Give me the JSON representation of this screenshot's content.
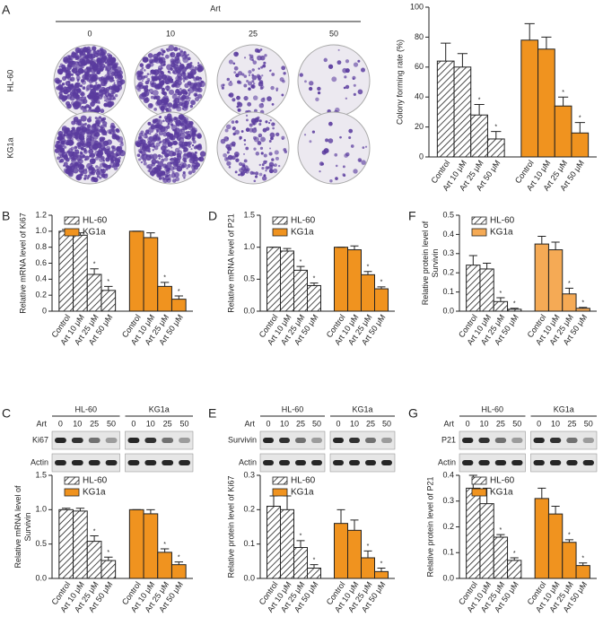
{
  "panel_letters": [
    "A",
    "B",
    "C",
    "D",
    "E",
    "F",
    "G"
  ],
  "plates": {
    "title": "Art",
    "doses": [
      "0",
      "10",
      "25",
      "50"
    ],
    "rows": [
      "HL-60",
      "KG1a"
    ]
  },
  "blots": [
    {
      "groups": [
        "HL-60",
        "KG1a"
      ],
      "label": "Art",
      "doses": [
        "0",
        "10",
        "25",
        "50"
      ],
      "proteins": [
        "Ki67",
        "Actin"
      ]
    },
    {
      "groups": [
        "HL-60",
        "KG1a"
      ],
      "label": "Art",
      "doses": [
        "0",
        "10",
        "25",
        "50"
      ],
      "proteins": [
        "Survivin",
        "Actin"
      ]
    },
    {
      "groups": [
        "HL-60",
        "KG1a"
      ],
      "label": "Art",
      "doses": [
        "0",
        "10",
        "25",
        "50"
      ],
      "proteins": [
        "P21",
        "Actin"
      ]
    }
  ],
  "chart_data": [
    {
      "type": "bar",
      "ylabel": [
        "Colony forming rate (%)"
      ],
      "categories": [
        "Control",
        "Art 10 μM",
        "Art 25 μM",
        "Art 50 μM"
      ],
      "ylim": [
        0,
        100
      ],
      "yticks": [
        0,
        20,
        40,
        60,
        80,
        100
      ],
      "series": [
        {
          "color": "#ffffff",
          "pattern": "hatch",
          "values": [
            64,
            60,
            28,
            12
          ],
          "errors": [
            12,
            9,
            7,
            5
          ],
          "marks": [
            null,
            null,
            "*",
            "*"
          ]
        },
        {
          "color": "#f0931f",
          "values": [
            78,
            72,
            34,
            16
          ],
          "errors": [
            11,
            8,
            6,
            7
          ],
          "marks": [
            null,
            null,
            "*",
            "*"
          ]
        }
      ]
    },
    {
      "type": "bar",
      "ylabel": [
        "Relative mRNA level of Ki67"
      ],
      "categories": [
        "Control",
        "Art 10 μM",
        "Art 25 μM",
        "Art 50 μM"
      ],
      "ylim": [
        0,
        1.2
      ],
      "yticks": [
        0,
        0.2,
        0.4,
        0.6,
        0.8,
        {
          "value": 1,
          "label": "1.0"
        },
        1.2
      ],
      "legend": "upper left",
      "series": [
        {
          "name": "HL-60",
          "color": "#ffffff",
          "pattern": "hatch",
          "values": [
            1.0,
            0.95,
            0.46,
            0.26
          ],
          "errors": [
            0.02,
            0.03,
            0.07,
            0.05
          ],
          "marks": [
            null,
            null,
            "*",
            "*"
          ]
        },
        {
          "name": "KG1a",
          "color": "#f0931f",
          "values": [
            1.0,
            0.92,
            0.31,
            0.15
          ],
          "errors": [
            0.0,
            0.06,
            0.05,
            0.04
          ],
          "marks": [
            null,
            null,
            "*",
            "*"
          ]
        }
      ]
    },
    {
      "type": "bar",
      "ylabel": [
        "Relative mRNA level of",
        "Survivin"
      ],
      "categories": [
        "Control",
        "Art 10 μM",
        "Art 25 μM",
        "Art 50 μM"
      ],
      "ylim": [
        0,
        1.5
      ],
      "yticks": [
        {
          "value": 0,
          "label": "0.0"
        },
        0.5,
        {
          "value": 1,
          "label": "1.0"
        },
        1.5
      ],
      "legend": "upper left",
      "series": [
        {
          "name": "HL-60",
          "color": "#ffffff",
          "pattern": "hatch",
          "values": [
            1.0,
            0.98,
            0.54,
            0.26
          ],
          "errors": [
            0.02,
            0.04,
            0.08,
            0.05
          ],
          "marks": [
            null,
            null,
            "*",
            "*"
          ]
        },
        {
          "name": "KG1a",
          "color": "#f0931f",
          "values": [
            1.0,
            0.94,
            0.38,
            0.2
          ],
          "errors": [
            0.0,
            0.06,
            0.05,
            0.04
          ],
          "marks": [
            null,
            null,
            "*",
            "*"
          ]
        }
      ]
    },
    {
      "type": "bar",
      "ylabel": [
        "Relative mRNA level of P21"
      ],
      "categories": [
        "Control",
        "Art 10 μM",
        "Art 25 μM",
        "Art 50 μM"
      ],
      "ylim": [
        0,
        1.5
      ],
      "yticks": [
        {
          "value": 0,
          "label": "0.0"
        },
        0.5,
        {
          "value": 1,
          "label": "1.0"
        },
        1.5
      ],
      "legend": "upper left",
      "series": [
        {
          "name": "HL-60",
          "color": "#ffffff",
          "pattern": "hatch",
          "values": [
            1.0,
            0.94,
            0.64,
            0.4
          ],
          "errors": [
            0.0,
            0.04,
            0.06,
            0.04
          ],
          "marks": [
            null,
            null,
            "*",
            "*"
          ]
        },
        {
          "name": "KG1a",
          "color": "#f0931f",
          "values": [
            1.0,
            0.96,
            0.57,
            0.35
          ],
          "errors": [
            0.0,
            0.06,
            0.05,
            0.03
          ],
          "marks": [
            null,
            null,
            "*",
            "*"
          ]
        }
      ]
    },
    {
      "type": "bar",
      "ylabel": [
        "Relative protein level of Ki67"
      ],
      "categories": [
        "Control",
        "Art 10 μM",
        "Art 25 μM",
        "Art 50 μM"
      ],
      "ylim": [
        0,
        0.3
      ],
      "yticks": [
        {
          "value": 0,
          "label": "0.0"
        },
        0.1,
        0.2,
        0.3
      ],
      "legend": "upper left",
      "series": [
        {
          "name": "HL-60",
          "color": "#ffffff",
          "pattern": "hatch",
          "values": [
            0.21,
            0.2,
            0.09,
            0.03
          ],
          "errors": [
            0.03,
            0.04,
            0.02,
            0.01
          ],
          "marks": [
            null,
            null,
            "*",
            "*"
          ]
        },
        {
          "name": "KG1a",
          "color": "#f0931f",
          "values": [
            0.16,
            0.14,
            0.06,
            0.02
          ],
          "errors": [
            0.04,
            0.03,
            0.02,
            0.01
          ],
          "marks": [
            null,
            null,
            "*",
            "*"
          ]
        }
      ]
    },
    {
      "type": "bar",
      "ylabel": [
        "Relative protein level of",
        "Survivin"
      ],
      "categories": [
        "Control",
        "Art 10 μM",
        "Art 25 μM",
        "Art 50 μM"
      ],
      "ylim": [
        0,
        0.5
      ],
      "yticks": [
        {
          "value": 0,
          "label": "0.0"
        },
        0.1,
        0.2,
        0.3,
        0.4,
        0.5
      ],
      "legend": "upper left",
      "series": [
        {
          "name": "HL-60",
          "color": "#ffffff",
          "pattern": "hatch",
          "values": [
            0.24,
            0.22,
            0.05,
            0.01
          ],
          "errors": [
            0.05,
            0.03,
            0.02,
            0.005
          ],
          "marks": [
            null,
            null,
            "*",
            "*"
          ]
        },
        {
          "name": "KG1a",
          "color": "#f5aa55",
          "values": [
            0.35,
            0.32,
            0.09,
            0.015
          ],
          "errors": [
            0.04,
            0.04,
            0.03,
            0.005
          ],
          "marks": [
            null,
            null,
            "*",
            "*"
          ]
        }
      ]
    },
    {
      "type": "bar",
      "ylabel": [
        "Relative protein level of P21"
      ],
      "categories": [
        "Control",
        "Art 10 μM",
        "Art 25 μM",
        "Art 50 μM"
      ],
      "ylim": [
        0,
        0.4
      ],
      "yticks": [
        {
          "value": 0,
          "label": "0.0"
        },
        0.1,
        0.2,
        0.3,
        0.4
      ],
      "legend": "upper left",
      "series": [
        {
          "name": "HL-60",
          "color": "#ffffff",
          "pattern": "hatch",
          "values": [
            0.35,
            0.29,
            0.16,
            0.07
          ],
          "errors": [
            0.05,
            0.06,
            0.01,
            0.01
          ],
          "marks": [
            null,
            null,
            "*",
            "*"
          ]
        },
        {
          "name": "KG1a",
          "color": "#f0931f",
          "values": [
            0.31,
            0.25,
            0.14,
            0.05
          ],
          "errors": [
            0.04,
            0.03,
            0.01,
            0.01
          ],
          "marks": [
            null,
            null,
            "*",
            "*"
          ]
        }
      ]
    }
  ]
}
